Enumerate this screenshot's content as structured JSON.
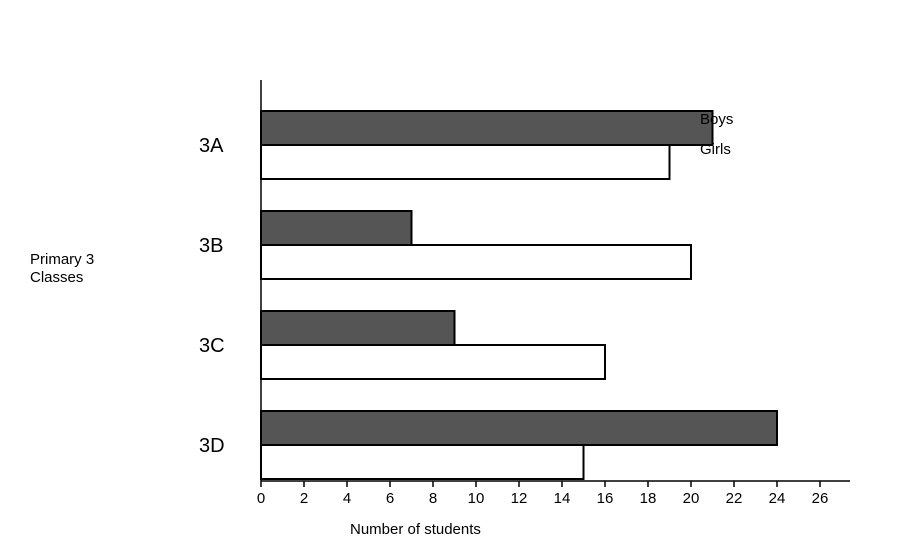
{
  "chart_data": {
    "type": "bar",
    "orientation": "horizontal",
    "categories": [
      "3A",
      "3B",
      "3C",
      "3D"
    ],
    "series": [
      {
        "name": "Boys",
        "values": [
          21,
          7,
          9,
          24
        ],
        "color": "#555555"
      },
      {
        "name": "Girls",
        "values": [
          19,
          20,
          16,
          15
        ],
        "color": "#ffffff"
      }
    ],
    "xlabel": "Number of students",
    "ylabel_lines": [
      "Primary 3",
      "Classes"
    ],
    "xticks": [
      0,
      2,
      4,
      6,
      8,
      10,
      12,
      14,
      16,
      18,
      20,
      22,
      24,
      26
    ],
    "xlim": [
      0,
      27.5
    ],
    "grid": false,
    "legend_position": "top-right"
  }
}
